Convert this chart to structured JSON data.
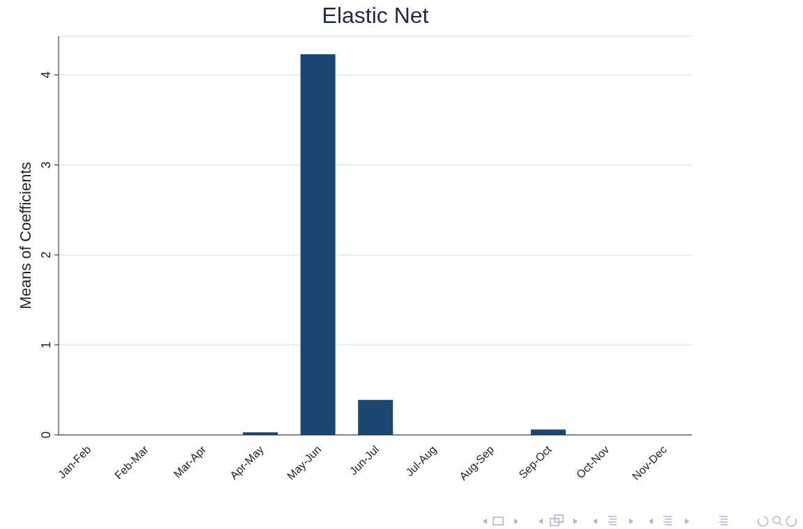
{
  "chart_data": {
    "type": "bar",
    "title": "Elastic Net",
    "ylabel": "Means of Coefficients",
    "categories": [
      "Jan-Feb",
      "Feb-Mar",
      "Mar-Apr",
      "Apr-May",
      "May-Jun",
      "Jun-Jul",
      "Jul-Aug",
      "Aug-Sep",
      "Sep-Oct",
      "Oct-Nov",
      "Nov-Dec"
    ],
    "values": [
      0,
      0,
      0,
      0.03,
      4.23,
      0.39,
      0,
      0,
      0.06,
      0,
      0
    ],
    "color": "#1a476f",
    "ylim": [
      0,
      4.43
    ],
    "yticks": [
      0,
      1,
      2,
      3,
      4
    ],
    "grid": "y"
  }
}
